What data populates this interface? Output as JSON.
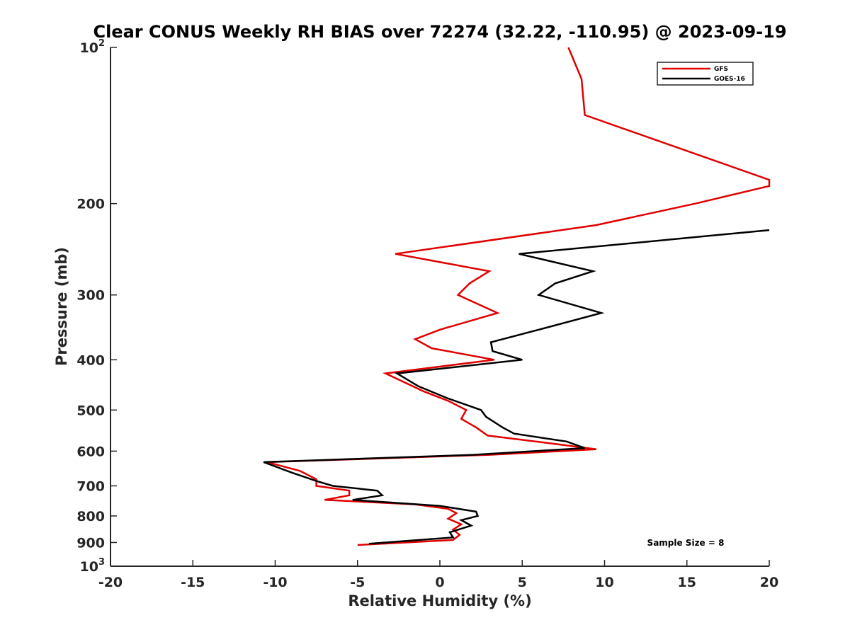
{
  "chart_data": {
    "type": "line",
    "title": "Clear CONUS Weekly RH BIAS over 72274 (32.22, -110.95) @ 2023-09-19",
    "xlabel": "Relative Humidity (%)",
    "ylabel": "Pressure (mb)",
    "xlim": [
      -20,
      20
    ],
    "ylim": [
      100,
      1000
    ],
    "y_scale": "log",
    "y_reversed": true,
    "x_ticks": [
      -20,
      -15,
      -10,
      -5,
      0,
      5,
      10,
      15,
      20
    ],
    "x_tick_labels": [
      "-20",
      "-15",
      "-10",
      "-5",
      "0",
      "5",
      "10",
      "15",
      "20"
    ],
    "y_ticks": [
      100,
      200,
      300,
      400,
      500,
      600,
      700,
      800,
      900,
      1000
    ],
    "y_tick_labels": [
      {
        "base": "10",
        "exp": "2"
      },
      {
        "base": "200",
        "exp": ""
      },
      {
        "base": "300",
        "exp": ""
      },
      {
        "base": "400",
        "exp": ""
      },
      {
        "base": "500",
        "exp": ""
      },
      {
        "base": "600",
        "exp": ""
      },
      {
        "base": "700",
        "exp": ""
      },
      {
        "base": "800",
        "exp": ""
      },
      {
        "base": "900",
        "exp": ""
      },
      {
        "base": "10",
        "exp": "3"
      }
    ],
    "grid": false,
    "legend_position": "top-right",
    "annotation": "Sample Size = 8",
    "series": [
      {
        "name": "GFS",
        "color": "#e00000",
        "points": [
          [
            7.8,
            100
          ],
          [
            8.6,
            115
          ],
          [
            8.8,
            135
          ],
          [
            20,
            180
          ],
          [
            20,
            185
          ],
          [
            15.5,
            200
          ],
          [
            9.5,
            220
          ],
          [
            -2.7,
            250
          ],
          [
            3.0,
            270
          ],
          [
            1.8,
            285
          ],
          [
            1.1,
            300
          ],
          [
            3.5,
            325
          ],
          [
            0,
            350
          ],
          [
            -1.5,
            365
          ],
          [
            -0.5,
            380
          ],
          [
            3.3,
            400
          ],
          [
            -3.3,
            425
          ],
          [
            -1.0,
            460
          ],
          [
            0.5,
            480
          ],
          [
            1.6,
            500
          ],
          [
            1.3,
            520
          ],
          [
            2.2,
            540
          ],
          [
            2.9,
            560
          ],
          [
            6.8,
            580
          ],
          [
            9.5,
            595
          ],
          [
            3.0,
            610
          ],
          [
            -10.5,
            630
          ],
          [
            -8.5,
            655
          ],
          [
            -7.5,
            680
          ],
          [
            -7.5,
            700
          ],
          [
            -5.5,
            715
          ],
          [
            -5.5,
            730
          ],
          [
            -7.0,
            745
          ],
          [
            -1.5,
            760
          ],
          [
            0.5,
            775
          ],
          [
            1.0,
            790
          ],
          [
            0.5,
            810
          ],
          [
            1.3,
            830
          ],
          [
            0.8,
            850
          ],
          [
            1.2,
            870
          ],
          [
            0.8,
            890
          ],
          [
            -5.0,
            910
          ]
        ]
      },
      {
        "name": "GOES-16",
        "color": "#000000",
        "points": [
          [
            20,
            225
          ],
          [
            4.8,
            250
          ],
          [
            9.3,
            270
          ],
          [
            7.0,
            285
          ],
          [
            6.0,
            300
          ],
          [
            9.8,
            325
          ],
          [
            6.0,
            350
          ],
          [
            3.1,
            370
          ],
          [
            3.2,
            385
          ],
          [
            5.0,
            400
          ],
          [
            -2.6,
            425
          ],
          [
            -1.3,
            450
          ],
          [
            0.5,
            475
          ],
          [
            2.5,
            500
          ],
          [
            2.8,
            515
          ],
          [
            3.8,
            540
          ],
          [
            4.5,
            555
          ],
          [
            7.7,
            575
          ],
          [
            8.8,
            592
          ],
          [
            2.0,
            610
          ],
          [
            -10.7,
            630
          ],
          [
            -9.0,
            660
          ],
          [
            -7.5,
            685
          ],
          [
            -6.5,
            700
          ],
          [
            -3.8,
            715
          ],
          [
            -3.5,
            730
          ],
          [
            -5.3,
            745
          ],
          [
            0,
            765
          ],
          [
            2.2,
            785
          ],
          [
            2.3,
            800
          ],
          [
            1.3,
            815
          ],
          [
            1.9,
            835
          ],
          [
            0.6,
            860
          ],
          [
            0.8,
            880
          ],
          [
            -4.3,
            905
          ]
        ]
      }
    ]
  }
}
